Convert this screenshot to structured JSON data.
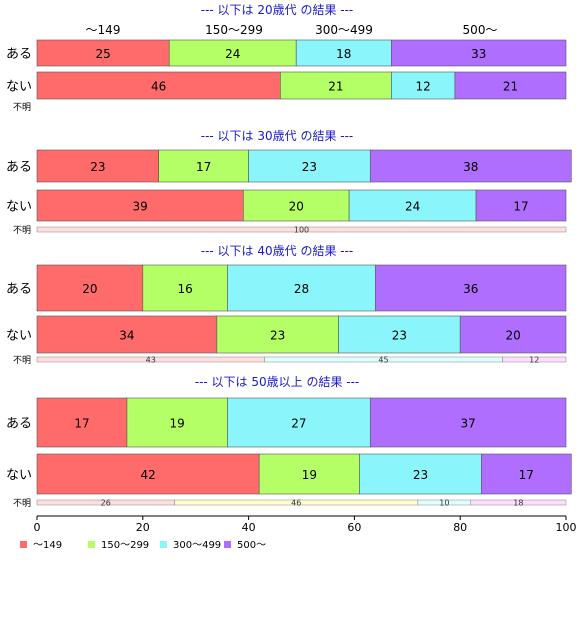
{
  "chart_data": {
    "type": "bar",
    "orientation": "horizontal",
    "stacked": "100%",
    "xlim": [
      0,
      100
    ],
    "x_ticks": [
      "0",
      "20",
      "40",
      "60",
      "80",
      "100"
    ],
    "header_labels": [
      "～149",
      "150～299",
      "300～499",
      "500～"
    ],
    "legend": {
      "position": "bottom-left",
      "entries": [
        "～149",
        "150～299",
        "300～499",
        "500～"
      ]
    },
    "colors": [
      "#ff6b6b",
      "#b5ff66",
      "#8af5fa",
      "#b06eff"
    ],
    "unknown_colors": [
      "#ffdede",
      "#ffffcc",
      "#ddffff",
      "#ffddff"
    ],
    "title_color": "#1a1acc",
    "groups": [
      {
        "title": "--- 以下は 20歳代 の結果 ---",
        "rows": [
          {
            "label": "ある",
            "values": [
              25,
              24,
              18,
              33
            ]
          },
          {
            "label": "ない",
            "values": [
              46,
              21,
              12,
              21
            ]
          }
        ],
        "unknown": {
          "label": "不明",
          "values": []
        }
      },
      {
        "title": "--- 以下は 30歳代 の結果 ---",
        "rows": [
          {
            "label": "ある",
            "values": [
              23,
              17,
              23,
              38
            ]
          },
          {
            "label": "ない",
            "values": [
              39,
              20,
              24,
              17
            ]
          }
        ],
        "unknown": {
          "label": "不明",
          "values": [
            100
          ]
        }
      },
      {
        "title": "--- 以下は 40歳代 の結果 ---",
        "rows": [
          {
            "label": "ある",
            "values": [
              20,
              16,
              28,
              36
            ]
          },
          {
            "label": "ない",
            "values": [
              34,
              23,
              23,
              20
            ]
          }
        ],
        "unknown": {
          "label": "不明",
          "values": [
            43,
            0,
            45,
            12
          ]
        }
      },
      {
        "title": "--- 以下は 50歳以上 の結果 ---",
        "rows": [
          {
            "label": "ある",
            "values": [
              17,
              19,
              27,
              37
            ]
          },
          {
            "label": "ない",
            "values": [
              42,
              19,
              23,
              17
            ]
          }
        ],
        "unknown": {
          "label": "不明",
          "values": [
            26,
            46,
            10,
            18
          ]
        }
      }
    ]
  }
}
